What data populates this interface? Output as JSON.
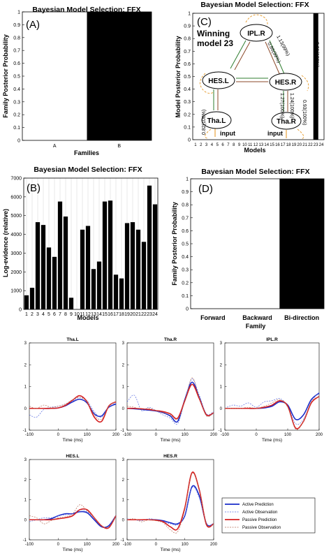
{
  "panelA": {
    "label": "(A)",
    "title": "Bayesian Model Selection: FFX",
    "ylabel": "Family Posterior Probability",
    "xlabel": "Families",
    "chart_data": {
      "type": "bar",
      "categories": [
        "A",
        "B"
      ],
      "values": [
        0,
        1
      ],
      "ylim": [
        0,
        1
      ],
      "yticks": [
        "0",
        "0.1",
        "0.2",
        "0.3",
        "0.4",
        "0.5",
        "0.6",
        "0.7",
        "0.8",
        "0.9",
        "1"
      ],
      "xlabel": "Families",
      "ylabel": "Family Posterior Probability",
      "title": "Bayesian Model Selection: FFX"
    }
  },
  "panelB": {
    "label": "(B)",
    "title": "Bayesian Model Selection: FFX",
    "ylabel": "Log-evidence (relative)",
    "xlabel": "Models",
    "chart_data": {
      "type": "bar",
      "categories": [
        "1",
        "2",
        "3",
        "4",
        "5",
        "6",
        "7",
        "8",
        "9",
        "10",
        "11",
        "12",
        "13",
        "14",
        "15",
        "16",
        "17",
        "18",
        "19",
        "20",
        "21",
        "22",
        "23",
        "24"
      ],
      "values": [
        750,
        1150,
        4650,
        4500,
        3300,
        2800,
        5750,
        4950,
        620,
        0,
        4250,
        4450,
        2150,
        2550,
        5750,
        5800,
        1850,
        1650,
        4600,
        4650,
        4250,
        3600,
        6600,
        5600
      ],
      "ylim": [
        0,
        7000
      ],
      "yticks": [
        "0",
        "1000",
        "2000",
        "3000",
        "4000",
        "5000",
        "6000",
        "7000"
      ],
      "xlabel": "Models",
      "ylabel": "Log-evidence (relative)",
      "title": "Bayesian Model Selection: FFX"
    }
  },
  "panelC": {
    "label": "(C)",
    "title": "Bayesian Model Selection: FFX",
    "ylabel": "Model Posterior Probability",
    "xlabel": "Models",
    "winning_line1": "Winning",
    "winning_line2": "model 23",
    "nodes": {
      "ipl": "IPL.R",
      "hesl": "HES.L",
      "hesr": "HES.R",
      "thal": "Tha.L",
      "thar": "Tha.R"
    },
    "edges": {
      "e1": "1.13(99%)",
      "e2": "0.86(99%)",
      "e3": "0.91(100%)",
      "e4": "0.82(100%)",
      "e5": "1.27(100%)",
      "e6": "1.24(100%)",
      "e7": "0.93(100%)"
    },
    "input1": "input",
    "input2": "input",
    "chart_data": {
      "type": "bar",
      "categories": [
        "1",
        "2",
        "3",
        "4",
        "5",
        "6",
        "7",
        "8",
        "9",
        "10",
        "11",
        "12",
        "13",
        "14",
        "15",
        "16",
        "17",
        "18",
        "19",
        "20",
        "21",
        "22",
        "23",
        "24"
      ],
      "values": [
        0,
        0,
        0,
        0,
        0,
        0,
        0,
        0,
        0,
        0,
        0,
        0,
        0,
        0,
        0,
        0,
        0,
        0,
        0,
        0,
        0,
        0,
        1,
        0
      ],
      "ylim": [
        0,
        1
      ],
      "yticks": [
        "0",
        "0.1",
        "0.2",
        "0.3",
        "0.4",
        "0.5",
        "0.6",
        "0.7",
        "0.8",
        "0.9",
        "1"
      ],
      "xlabel": "Models",
      "ylabel": "Model Posterior Probability",
      "title": "Bayesian Model Selection: FFX"
    }
  },
  "panelD": {
    "label": "(D)",
    "title": "Bayesian Model Selection: FFX",
    "ylabel": "Family Posterior Probability",
    "xlabel": "Family",
    "chart_data": {
      "type": "bar",
      "categories": [
        "Forward",
        "Backward",
        "Bi-direction"
      ],
      "values": [
        0,
        0,
        1
      ],
      "ylim": [
        0,
        1
      ],
      "yticks": [
        "0",
        "0.1",
        "0.2",
        "0.3",
        "0.4",
        "0.5",
        "0.6",
        "0.7",
        "0.8",
        "0.9",
        "1"
      ],
      "xlabel": "Family",
      "ylabel": "Family Posterior Probability",
      "title": "Bayesian Model Selection: FFX"
    }
  },
  "erp": {
    "xlabel": "Time (ms)",
    "xticks": [
      "-100",
      "0",
      "100",
      "200"
    ],
    "yticks": [
      "-1",
      "0",
      "1",
      "2",
      "3"
    ],
    "colors": {
      "active_pred": "#1a2cc9",
      "active_obs": "#5b6de0",
      "passive_pred": "#d62020",
      "passive_obs": "#b8705a"
    },
    "legend": [
      "Active Prediction",
      "Active Observation",
      "Passive Prediction",
      "Passive Observation"
    ],
    "chart_data": [
      {
        "type": "line",
        "title": "Tha.L",
        "x": [
          -100,
          -75,
          -50,
          -25,
          0,
          25,
          50,
          75,
          100,
          125,
          150,
          175,
          200
        ],
        "xlim": [
          -100,
          200
        ],
        "ylim": [
          -1,
          3
        ],
        "xlabel": "Time (ms)",
        "series": [
          {
            "name": "Active Prediction",
            "values": [
              0,
              0,
              0,
              0,
              0.02,
              0.12,
              0.3,
              0.42,
              0.25,
              -0.25,
              -0.35,
              0.05,
              0.2
            ]
          },
          {
            "name": "Active Observation",
            "values": [
              -0.3,
              -0.4,
              -0.05,
              0.05,
              0.1,
              0.2,
              0.35,
              0.5,
              0.35,
              -0.15,
              -0.4,
              0.05,
              0.25
            ]
          },
          {
            "name": "Passive Prediction",
            "values": [
              0,
              0,
              0,
              0,
              0.02,
              0.14,
              0.38,
              0.58,
              0.3,
              -0.4,
              -0.6,
              0.1,
              0.3
            ]
          },
          {
            "name": "Passive Observation",
            "values": [
              0.1,
              0.0,
              0.15,
              0.05,
              0.1,
              0.2,
              0.4,
              0.5,
              0.3,
              -0.3,
              -0.5,
              0.1,
              0.3
            ]
          }
        ]
      },
      {
        "type": "line",
        "title": "Tha.R",
        "x": [
          -100,
          -75,
          -50,
          -25,
          0,
          25,
          50,
          75,
          100,
          125,
          150,
          175,
          200
        ],
        "xlim": [
          -100,
          200
        ],
        "ylim": [
          -1,
          3
        ],
        "xlabel": "Time (ms)",
        "series": [
          {
            "name": "Active Prediction",
            "values": [
              0,
              -0.02,
              -0.05,
              -0.08,
              -0.12,
              -0.2,
              -0.35,
              -0.6,
              0.4,
              1.2,
              0.5,
              -0.3,
              -0.2
            ]
          },
          {
            "name": "Active Observation",
            "values": [
              0.3,
              0.6,
              -0.1,
              0.05,
              -0.1,
              -0.3,
              -0.45,
              -0.7,
              0.35,
              1.35,
              0.6,
              -0.25,
              -0.15
            ]
          },
          {
            "name": "Passive Prediction",
            "values": [
              0,
              0,
              -0.02,
              -0.05,
              -0.1,
              -0.15,
              -0.25,
              -0.45,
              0.35,
              1.1,
              0.45,
              -0.3,
              -0.2
            ]
          },
          {
            "name": "Passive Observation",
            "values": [
              0.1,
              0.05,
              -0.05,
              0,
              -0.1,
              -0.2,
              -0.3,
              -0.5,
              0.3,
              1.4,
              0.5,
              -0.35,
              -0.2
            ]
          }
        ]
      },
      {
        "type": "line",
        "title": "IPL.R",
        "x": [
          -100,
          -75,
          -50,
          -25,
          0,
          25,
          50,
          75,
          100,
          125,
          150,
          175,
          200
        ],
        "xlim": [
          -100,
          200
        ],
        "ylim": [
          -1,
          3
        ],
        "xlabel": "Time (ms)",
        "series": [
          {
            "name": "Active Prediction",
            "values": [
              0,
              0,
              0,
              0,
              0,
              0.02,
              0.1,
              0.3,
              0.15,
              -0.5,
              -0.3,
              0.4,
              0.7
            ]
          },
          {
            "name": "Active Observation",
            "values": [
              0,
              0.15,
              0.1,
              0.25,
              0.05,
              0.3,
              0.35,
              0.45,
              0.1,
              -0.7,
              -0.5,
              0.3,
              0.75
            ]
          },
          {
            "name": "Passive Prediction",
            "values": [
              0,
              0,
              0,
              0,
              0,
              0.05,
              0.15,
              0.35,
              0.1,
              -0.9,
              -0.6,
              0.25,
              0.55
            ]
          },
          {
            "name": "Passive Observation",
            "values": [
              0,
              0,
              0,
              0.05,
              0,
              0.1,
              0.25,
              0.4,
              0.05,
              -0.95,
              -0.6,
              0.3,
              0.55
            ]
          }
        ]
      },
      {
        "type": "line",
        "title": "HES.L",
        "x": [
          -100,
          -75,
          -50,
          -25,
          0,
          25,
          50,
          75,
          100,
          125,
          150,
          175,
          200
        ],
        "xlim": [
          -100,
          200
        ],
        "ylim": [
          -1,
          3
        ],
        "xlabel": "Time (ms)",
        "series": [
          {
            "name": "Active Prediction",
            "values": [
              0,
              0,
              0,
              0.05,
              0.2,
              0.3,
              0.3,
              0.4,
              0.35,
              0.0,
              -0.35,
              -0.3,
              0.2
            ]
          },
          {
            "name": "Active Observation",
            "values": [
              -0.1,
              0.0,
              0.1,
              0.1,
              0.2,
              0.25,
              0.3,
              0.5,
              0.4,
              0.1,
              -0.3,
              -0.35,
              0.15
            ]
          },
          {
            "name": "Passive Prediction",
            "values": [
              0,
              0,
              0,
              0,
              0.05,
              0.1,
              0.2,
              0.5,
              0.5,
              0.1,
              -0.3,
              -0.4,
              0.2
            ]
          },
          {
            "name": "Passive Observation",
            "values": [
              0.2,
              0.1,
              -0.2,
              -0.05,
              0.1,
              0.15,
              0.3,
              0.75,
              0.45,
              0.1,
              -0.3,
              -0.35,
              0.2
            ]
          }
        ]
      },
      {
        "type": "line",
        "title": "HES.R",
        "x": [
          -100,
          -75,
          -50,
          -25,
          0,
          25,
          50,
          75,
          100,
          125,
          150,
          175,
          200
        ],
        "xlim": [
          -100,
          200
        ],
        "ylim": [
          -1,
          3
        ],
        "xlabel": "Time (ms)",
        "series": [
          {
            "name": "Active Prediction",
            "values": [
              0,
              0,
              0,
              0,
              0,
              -0.05,
              -0.15,
              -0.2,
              0.2,
              1.65,
              1.2,
              -0.2,
              -0.2
            ]
          },
          {
            "name": "Active Observation",
            "values": [
              0.05,
              0,
              -0.05,
              0.05,
              0,
              -0.1,
              -0.2,
              -0.25,
              0.2,
              1.6,
              1.1,
              -0.2,
              -0.2
            ]
          },
          {
            "name": "Passive Prediction",
            "values": [
              0,
              0,
              0,
              0,
              -0.02,
              -0.1,
              -0.35,
              -0.45,
              0.6,
              2.35,
              1.5,
              -0.25,
              -0.2
            ]
          },
          {
            "name": "Passive Observation",
            "values": [
              0,
              0.05,
              -0.1,
              0,
              -0.05,
              -0.15,
              -0.5,
              -0.6,
              0.5,
              2.3,
              1.45,
              -0.2,
              -0.2
            ]
          }
        ]
      }
    ]
  }
}
